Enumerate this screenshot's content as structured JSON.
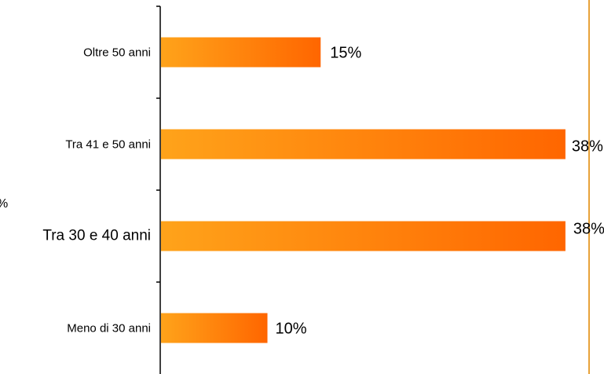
{
  "chart_data": {
    "type": "bar",
    "orientation": "horizontal",
    "categories": [
      "Oltre 50 anni",
      "Tra 41 e 50 anni",
      "Tra 30 e 40 anni",
      "Meno di 30 anni"
    ],
    "values": [
      15,
      38,
      38,
      10
    ],
    "value_labels": [
      "15%",
      "38%",
      "38%",
      "10%"
    ],
    "xlim": [
      0,
      40
    ],
    "colors": {
      "bar_start": "#FFA31A",
      "bar_end": "#FF6600",
      "right_border": "#E8A23A",
      "axis": "#000000"
    }
  },
  "stray_text": "%"
}
